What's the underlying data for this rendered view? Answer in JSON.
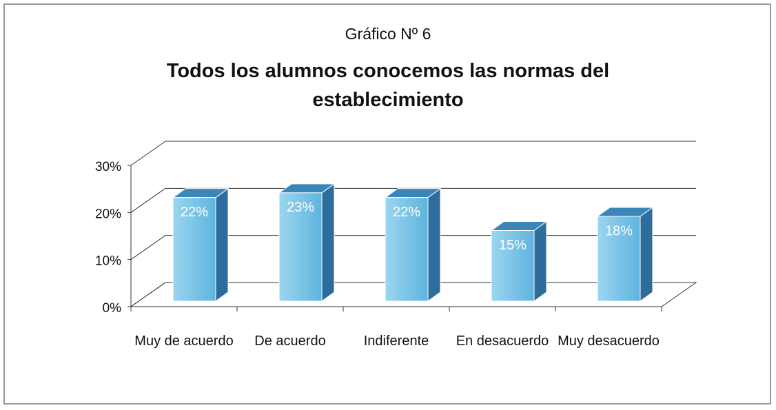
{
  "chart_data": {
    "type": "bar3d",
    "subtitle": "Gráfico Nº 6",
    "title": "Todos los alumnos conocemos las normas del establecimiento",
    "categories": [
      "Muy de acuerdo",
      "De acuerdo",
      "Indiferente",
      "En desacuerdo",
      "Muy desacuerdo"
    ],
    "values": [
      22,
      23,
      22,
      15,
      18
    ],
    "value_labels": [
      "22%",
      "23%",
      "22%",
      "15%",
      "18%"
    ],
    "color": "#6fbfe4",
    "ylim": [
      0,
      30
    ],
    "yticks": [
      {
        "value": 0,
        "label": "0%"
      },
      {
        "value": 10,
        "label": "10%"
      },
      {
        "value": 20,
        "label": "20%"
      },
      {
        "value": 30,
        "label": "30%"
      }
    ],
    "grid": true
  }
}
